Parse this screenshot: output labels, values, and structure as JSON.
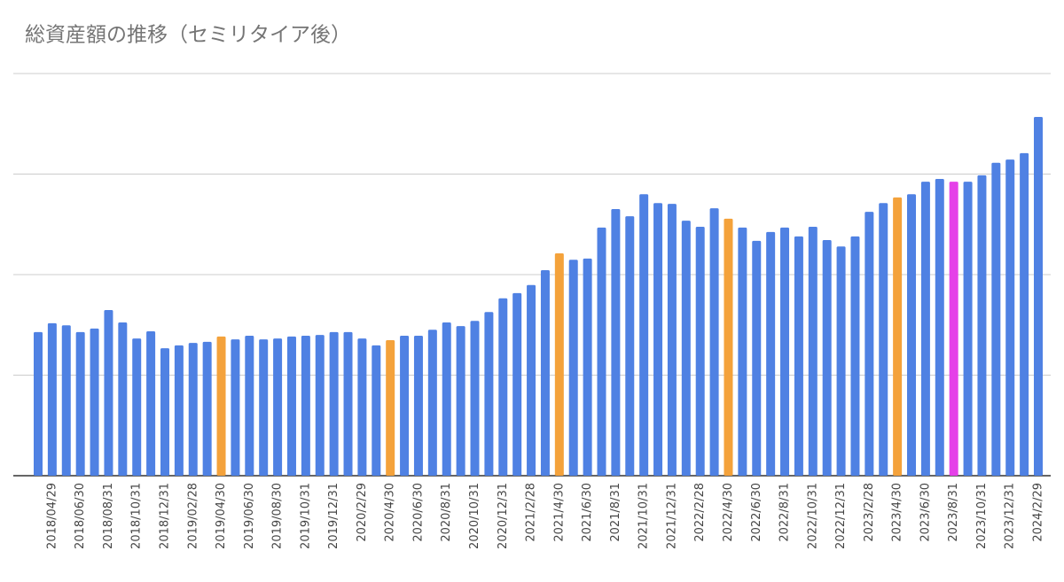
{
  "chart_data": {
    "type": "bar",
    "title": "総資産額の推移（セミリタイア後）",
    "categories": [
      null,
      "2018/04/29",
      null,
      "2018/06/30",
      null,
      "2018/08/31",
      null,
      "2018/10/31",
      null,
      "2018/12/31",
      null,
      "2019/02/28",
      null,
      "2019/04/30",
      null,
      "2019/06/30",
      null,
      "2019/08/30",
      null,
      "2019/10/31",
      null,
      "2019/12/31",
      null,
      "2020/2/29",
      null,
      "2020/4/30",
      null,
      "2020/6/30",
      null,
      "2020/8/31",
      null,
      "2020/10/31",
      null,
      "2020/12/31",
      null,
      "2021/2/28",
      null,
      "2021/4/30",
      null,
      "2021/6/30",
      null,
      "2021/8/31",
      null,
      "2021/10/31",
      null,
      "2021/12/31",
      null,
      "2022/2/28",
      null,
      "2022/4/30",
      null,
      "2022/6/30",
      null,
      "2022/8/31",
      null,
      "2022/10/31",
      null,
      "2022/12/31",
      null,
      "2023/2/28",
      null,
      "2023/4/30",
      null,
      "2023/6/30",
      null,
      "2023/8/31",
      null,
      "2023/10/31",
      null,
      "2023/12/31",
      null,
      "2024/2/29"
    ],
    "values": [
      35.7,
      37.9,
      37.4,
      35.7,
      36.6,
      41.2,
      38.1,
      34.1,
      35.9,
      31.7,
      32.4,
      33.0,
      33.3,
      34.6,
      33.9,
      34.8,
      33.9,
      34.1,
      34.6,
      34.8,
      35.0,
      35.7,
      35.7,
      34.1,
      32.4,
      33.7,
      34.8,
      34.8,
      36.3,
      38.1,
      37.2,
      38.5,
      40.7,
      44.1,
      45.4,
      47.4,
      51.1,
      55.3,
      53.7,
      54.0,
      61.7,
      66.3,
      64.5,
      70.0,
      67.8,
      67.6,
      63.4,
      61.9,
      66.5,
      63.9,
      61.7,
      58.4,
      60.6,
      61.7,
      59.5,
      61.9,
      58.6,
      57.0,
      59.5,
      65.6,
      67.8,
      69.2,
      70.0,
      73.1,
      73.8,
      73.1,
      73.1,
      74.7,
      77.8,
      78.6,
      80.2,
      89.2
    ],
    "color": "#4f81e3",
    "highlight_colors": {
      "13": "#f4a23b",
      "25": "#f4a23b",
      "37": "#f4a23b",
      "49": "#f4a23b",
      "61": "#f4a23b",
      "65": "#e540e8"
    },
    "ylim": [
      0,
      100
    ],
    "gridlines": [
      0,
      25,
      50,
      75,
      100
    ],
    "grid": true
  }
}
